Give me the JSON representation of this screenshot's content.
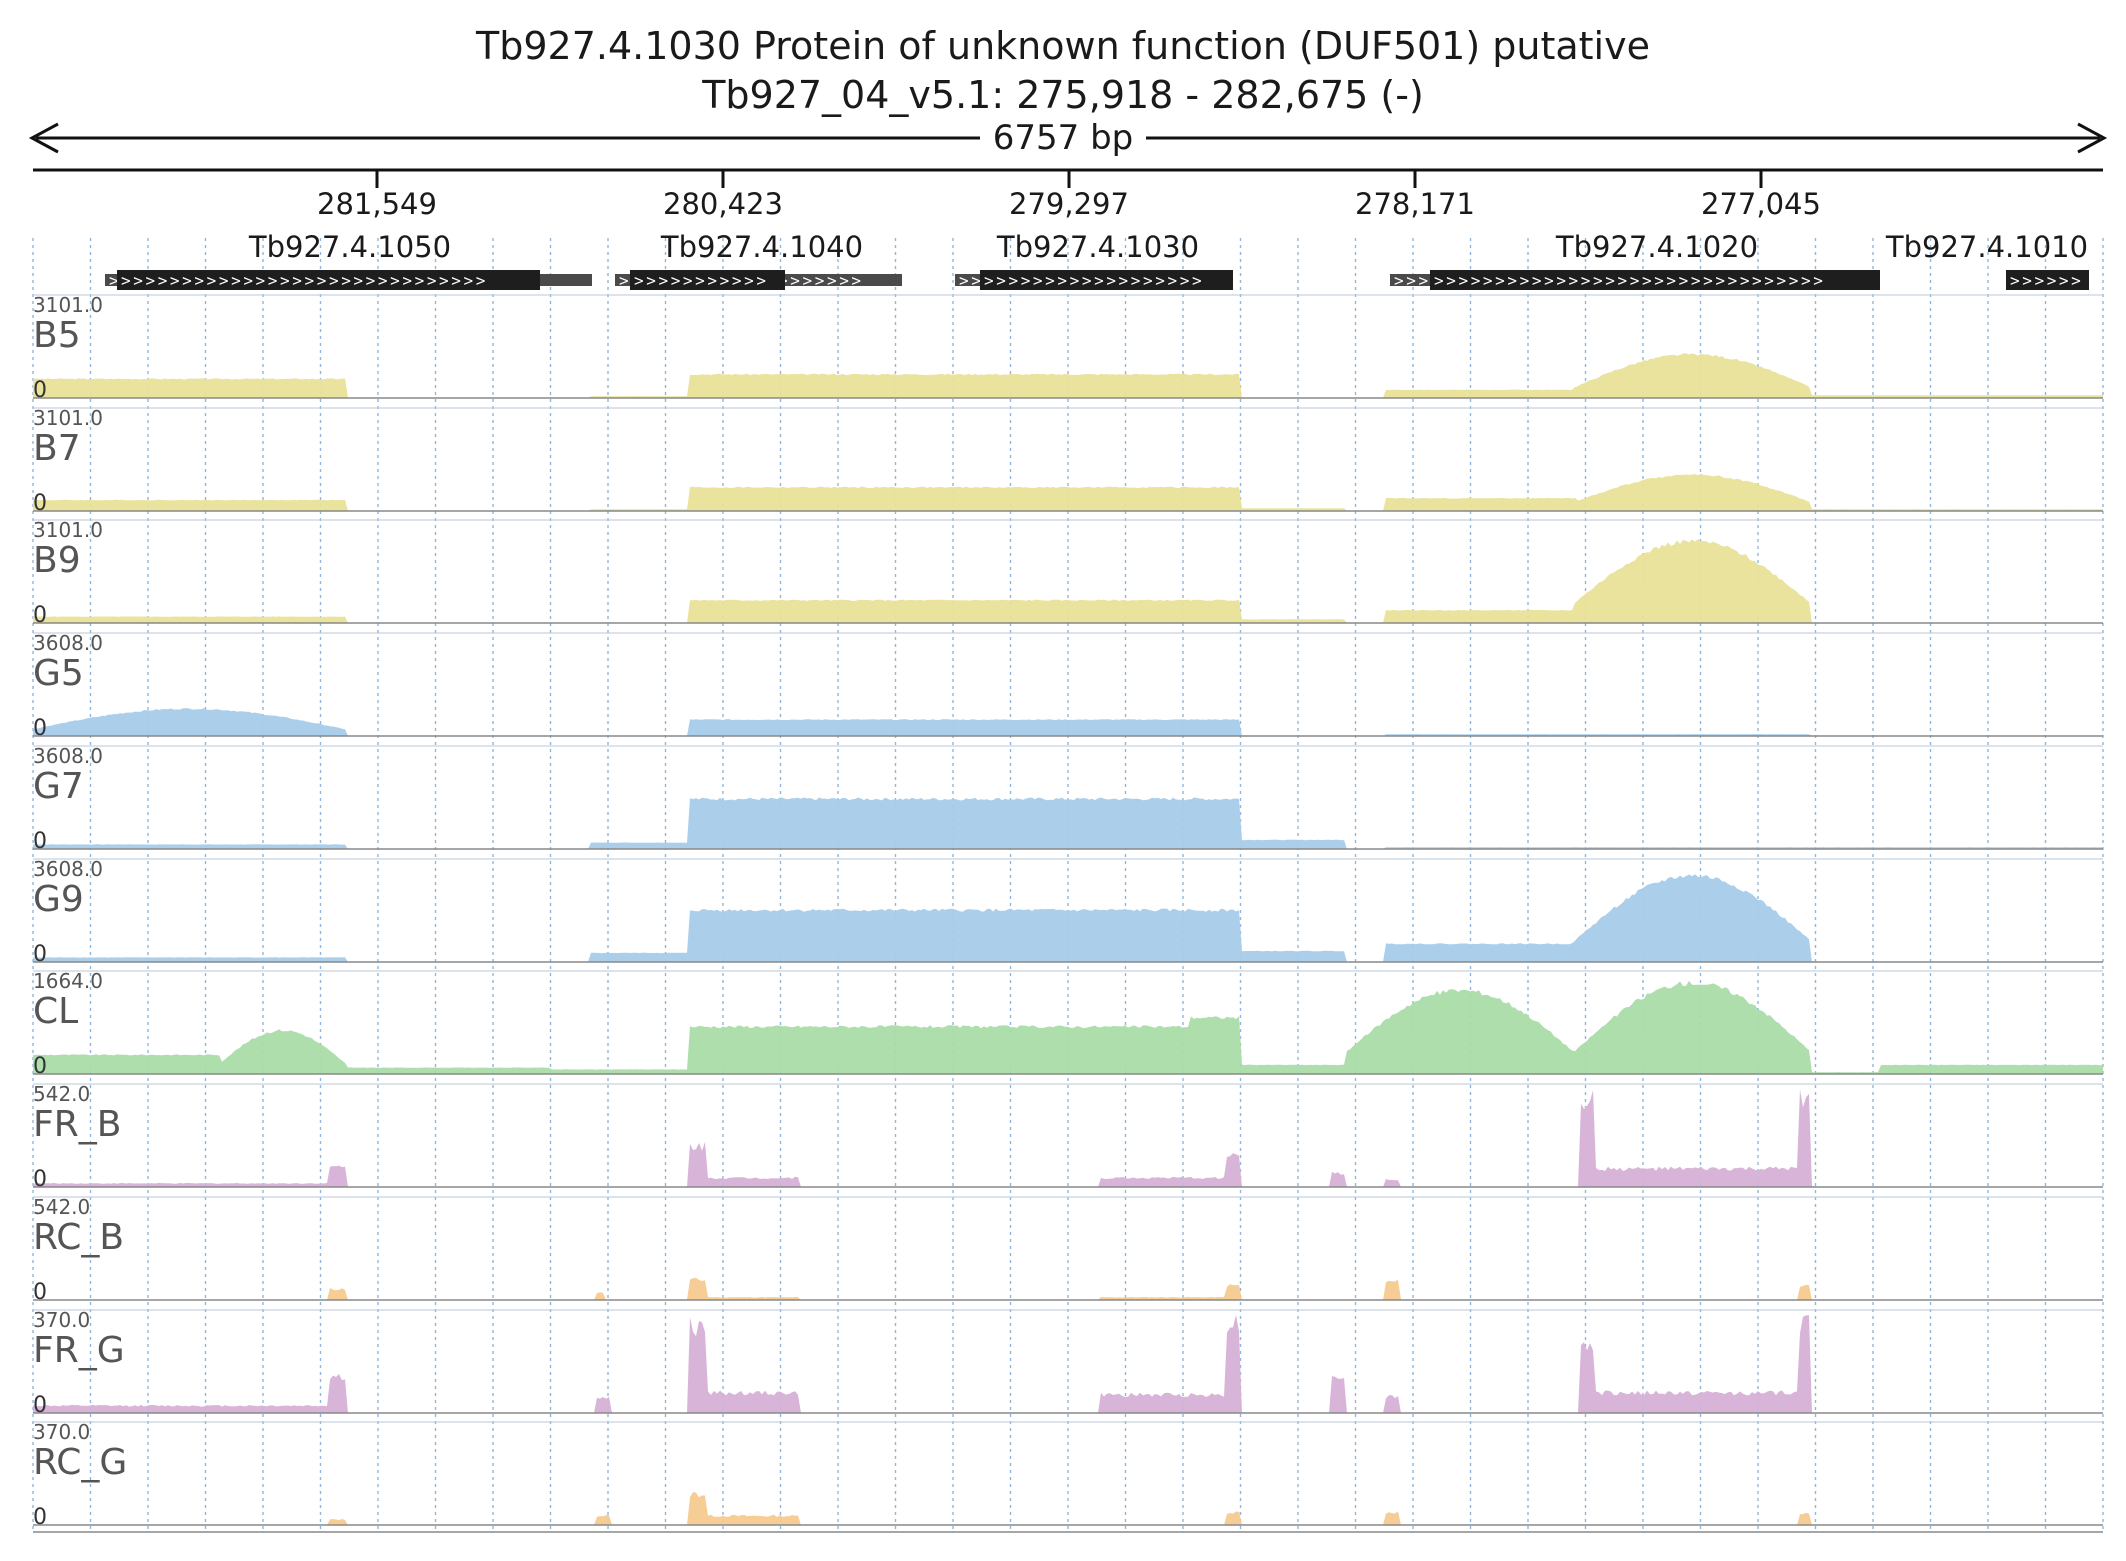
{
  "header": {
    "title": "Tb927.4.1030  Protein of unknown function (DUF501)  putative",
    "location": "Tb927_04_v5.1: 275,918 - 282,675 (-)",
    "span": "6757 bp"
  },
  "colors": {
    "B": "#e8e198",
    "G": "#a7cbea",
    "CL": "#a9dca6",
    "FR": "#d6b1d6",
    "RC": "#f6ca8f",
    "grid": "#8fb6dd",
    "gene": "#1e1e1e",
    "utr": "#4a4a4a"
  },
  "ruler": {
    "ticks": [
      "281,549",
      "280,423",
      "279,297",
      "278,171",
      "277,045"
    ]
  },
  "genes": [
    {
      "name": "Tb927.4.1050"
    },
    {
      "name": "Tb927.4.1040"
    },
    {
      "name": "Tb927.4.1030"
    },
    {
      "name": "Tb927.4.1020"
    },
    {
      "name": "Tb927.4.1010"
    }
  ],
  "tracks": [
    {
      "name": "B5",
      "max": "3101.0",
      "zero": "0"
    },
    {
      "name": "B7",
      "max": "3101.0",
      "zero": "0"
    },
    {
      "name": "B9",
      "max": "3101.0",
      "zero": "0"
    },
    {
      "name": "G5",
      "max": "3608.0",
      "zero": "0"
    },
    {
      "name": "G7",
      "max": "3608.0",
      "zero": "0"
    },
    {
      "name": "G9",
      "max": "3608.0",
      "zero": "0"
    },
    {
      "name": "CL",
      "max": "1664.0",
      "zero": "0"
    },
    {
      "name": "FR_B",
      "max": "542.0",
      "zero": "0"
    },
    {
      "name": "RC_B",
      "max": "542.0",
      "zero": "0"
    },
    {
      "name": "FR_G",
      "max": "370.0",
      "zero": "0"
    },
    {
      "name": "RC_G",
      "max": "370.0",
      "zero": "0"
    }
  ]
}
